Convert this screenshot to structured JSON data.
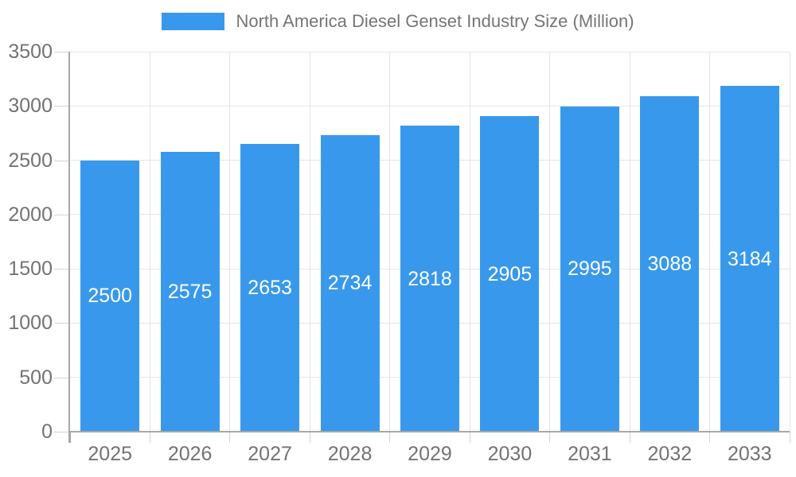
{
  "legend": {
    "label": "North America Diesel Genset Industry Size (Million)"
  },
  "chart_data": {
    "type": "bar",
    "title": "North America Diesel Genset Industry Size (Million)",
    "categories": [
      "2025",
      "2026",
      "2027",
      "2028",
      "2029",
      "2030",
      "2031",
      "2032",
      "2033"
    ],
    "values": [
      2500,
      2575,
      2653,
      2734,
      2818,
      2905,
      2995,
      3088,
      3184
    ],
    "series": [
      {
        "name": "North America Diesel Genset Industry Size (Million)",
        "values": [
          2500,
          2575,
          2653,
          2734,
          2818,
          2905,
          2995,
          3088,
          3184
        ]
      }
    ],
    "xlabel": "",
    "ylabel": "",
    "ylim": [
      0,
      3500
    ],
    "yticks": [
      0,
      500,
      1000,
      1500,
      2000,
      2500,
      3000,
      3500
    ],
    "grid": true,
    "legend_position": "top",
    "bar_color": "#3899EC",
    "bar_label_color": "#FFFFFF"
  },
  "colors": {
    "legend_text": "#757575",
    "axis_text": "#737373",
    "grid_line": "#E6E6E6",
    "axis_line": "#A8A8A8",
    "tick_line": "#D4D4D4",
    "background": "#FFFFFF"
  }
}
